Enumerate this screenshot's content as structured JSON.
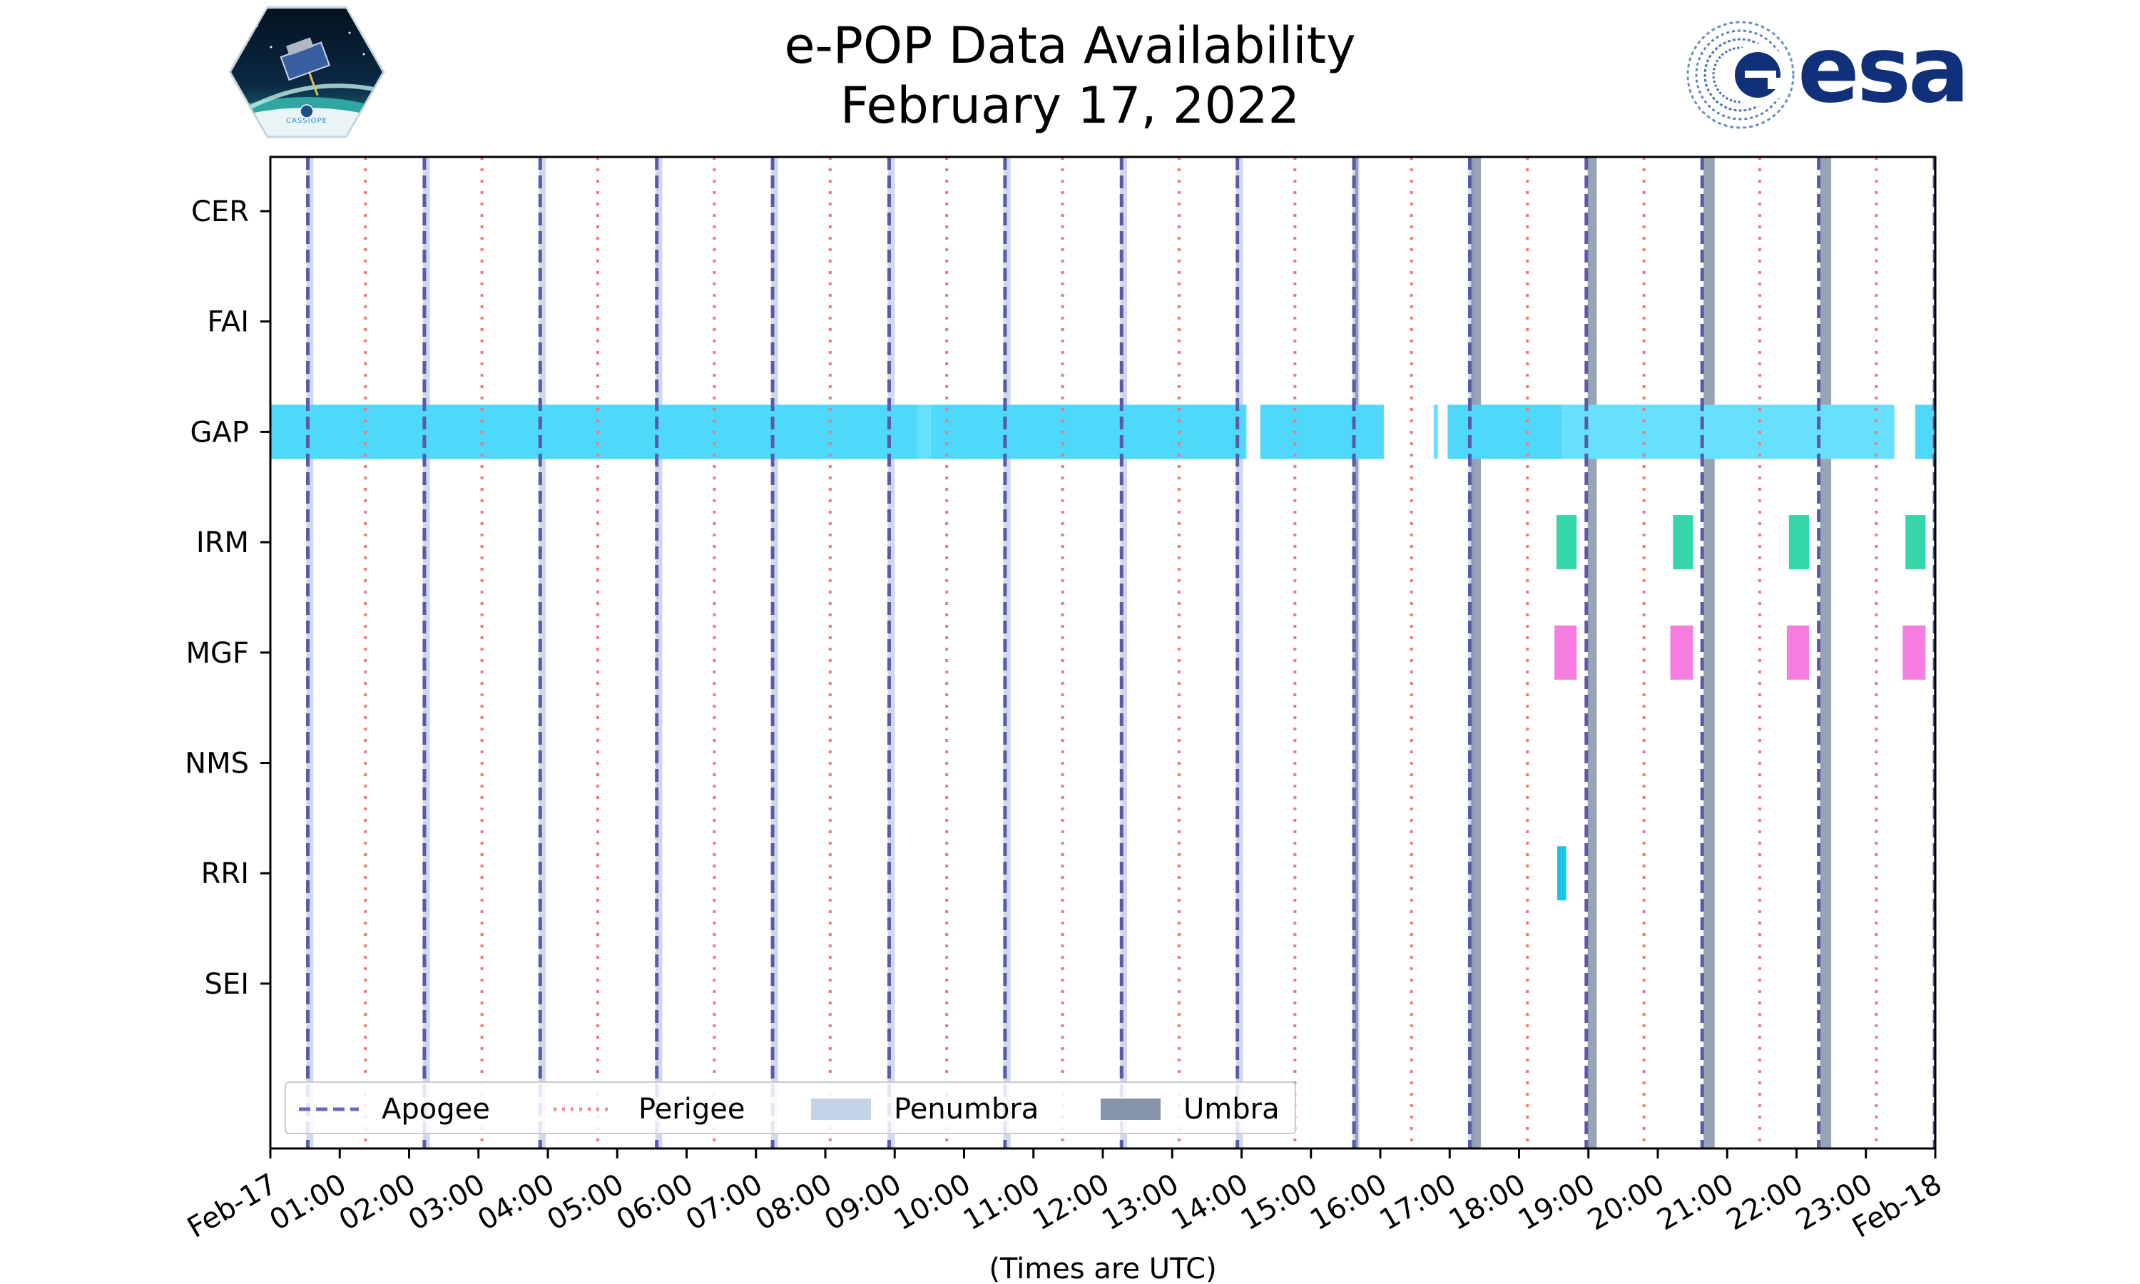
{
  "title": [
    "e-POP Data Availability",
    "February 17, 2022"
  ],
  "logos": {
    "left": {
      "icon": "cassiope-mission-patch",
      "text": "CASSIOPE"
    },
    "right": {
      "icon": "esa-logo-swirl",
      "text": "esa",
      "color": "#10307a"
    }
  },
  "chart_data": {
    "type": "timeline",
    "xlabel": "(Times are UTC)",
    "xlim_hours": [
      0,
      24
    ],
    "x_ticks": [
      {
        "hour": 0,
        "label": "Feb-17"
      },
      {
        "hour": 1,
        "label": "01:00"
      },
      {
        "hour": 2,
        "label": "02:00"
      },
      {
        "hour": 3,
        "label": "03:00"
      },
      {
        "hour": 4,
        "label": "04:00"
      },
      {
        "hour": 5,
        "label": "05:00"
      },
      {
        "hour": 6,
        "label": "06:00"
      },
      {
        "hour": 7,
        "label": "07:00"
      },
      {
        "hour": 8,
        "label": "08:00"
      },
      {
        "hour": 9,
        "label": "09:00"
      },
      {
        "hour": 10,
        "label": "10:00"
      },
      {
        "hour": 11,
        "label": "11:00"
      },
      {
        "hour": 12,
        "label": "12:00"
      },
      {
        "hour": 13,
        "label": "13:00"
      },
      {
        "hour": 14,
        "label": "14:00"
      },
      {
        "hour": 15,
        "label": "15:00"
      },
      {
        "hour": 16,
        "label": "16:00"
      },
      {
        "hour": 17,
        "label": "17:00"
      },
      {
        "hour": 18,
        "label": "18:00"
      },
      {
        "hour": 19,
        "label": "19:00"
      },
      {
        "hour": 20,
        "label": "20:00"
      },
      {
        "hour": 21,
        "label": "21:00"
      },
      {
        "hour": 22,
        "label": "22:00"
      },
      {
        "hour": 23,
        "label": "23:00"
      },
      {
        "hour": 24,
        "label": "Feb-18"
      }
    ],
    "instruments": [
      "CER",
      "FAI",
      "GAP",
      "IRM",
      "MGF",
      "NMS",
      "RRI",
      "SEI"
    ],
    "apogee_hours": [
      0.54,
      2.22,
      3.89,
      5.57,
      7.24,
      8.92,
      10.59,
      12.27,
      13.94,
      15.62,
      17.29,
      18.97,
      20.64,
      22.32,
      23.99
    ],
    "perigee_hours": [
      1.37,
      3.05,
      4.72,
      6.4,
      8.07,
      9.75,
      11.42,
      13.1,
      14.77,
      16.45,
      18.12,
      19.8,
      21.47,
      23.15
    ],
    "penumbra_bands": [
      [
        0.52,
        0.62
      ],
      [
        2.2,
        2.3
      ],
      [
        3.87,
        3.97
      ],
      [
        5.55,
        5.65
      ],
      [
        7.22,
        7.32
      ],
      [
        8.9,
        9.0
      ],
      [
        10.57,
        10.67
      ],
      [
        12.25,
        12.35
      ],
      [
        13.92,
        14.02
      ],
      [
        15.6,
        15.7
      ],
      [
        17.27,
        17.37
      ]
    ],
    "umbra_bands": [
      [
        15.64,
        15.68
      ],
      [
        17.31,
        17.45
      ],
      [
        18.99,
        19.12
      ],
      [
        20.66,
        20.82
      ],
      [
        22.34,
        22.5
      ],
      [
        23.98,
        24.0
      ]
    ],
    "segments": {
      "GAP": [
        {
          "start": 0.0,
          "end": 9.33,
          "color": "#4dd8fc"
        },
        {
          "start": 9.33,
          "end": 9.52,
          "color": "#66e0fd"
        },
        {
          "start": 9.52,
          "end": 14.07,
          "color": "#4dd8fc"
        },
        {
          "start": 14.27,
          "end": 16.05,
          "color": "#4dd8fc"
        },
        {
          "start": 16.77,
          "end": 16.83,
          "color": "#66e0fd"
        },
        {
          "start": 16.97,
          "end": 18.62,
          "color": "#4dd8fc"
        },
        {
          "start": 18.62,
          "end": 23.41,
          "color": "#66e0fd"
        },
        {
          "start": 23.71,
          "end": 24.0,
          "color": "#4dd8fc"
        }
      ],
      "IRM": [
        {
          "start": 18.54,
          "end": 18.83,
          "color": "#35d6aa"
        },
        {
          "start": 20.22,
          "end": 20.51,
          "color": "#35d6aa"
        },
        {
          "start": 21.89,
          "end": 22.18,
          "color": "#35d6aa"
        },
        {
          "start": 23.57,
          "end": 23.86,
          "color": "#35d6aa"
        }
      ],
      "MGF": [
        {
          "start": 18.51,
          "end": 18.83,
          "color": "#f57ee0"
        },
        {
          "start": 20.18,
          "end": 20.51,
          "color": "#f57ee0"
        },
        {
          "start": 21.86,
          "end": 22.18,
          "color": "#f57ee0"
        },
        {
          "start": 23.53,
          "end": 23.86,
          "color": "#f57ee0"
        }
      ],
      "RRI": [
        {
          "start": 18.55,
          "end": 18.68,
          "color": "#1ec3ea"
        }
      ]
    },
    "legend": {
      "placement": "lower-left",
      "entries": [
        {
          "label": "Apogee",
          "style": "dashed-line",
          "color": "#6a6ab8"
        },
        {
          "label": "Perigee",
          "style": "dotted-line",
          "color": "#f08888"
        },
        {
          "label": "Penumbra",
          "style": "patch",
          "color": "#c5d3e6"
        },
        {
          "label": "Umbra",
          "style": "patch",
          "color": "#8594a6"
        }
      ]
    },
    "colors": {
      "apogee": "#5a5aa8",
      "perigee": "#f07878",
      "penumbra": "#c5d3e6",
      "umbra": "#8594a6"
    }
  }
}
